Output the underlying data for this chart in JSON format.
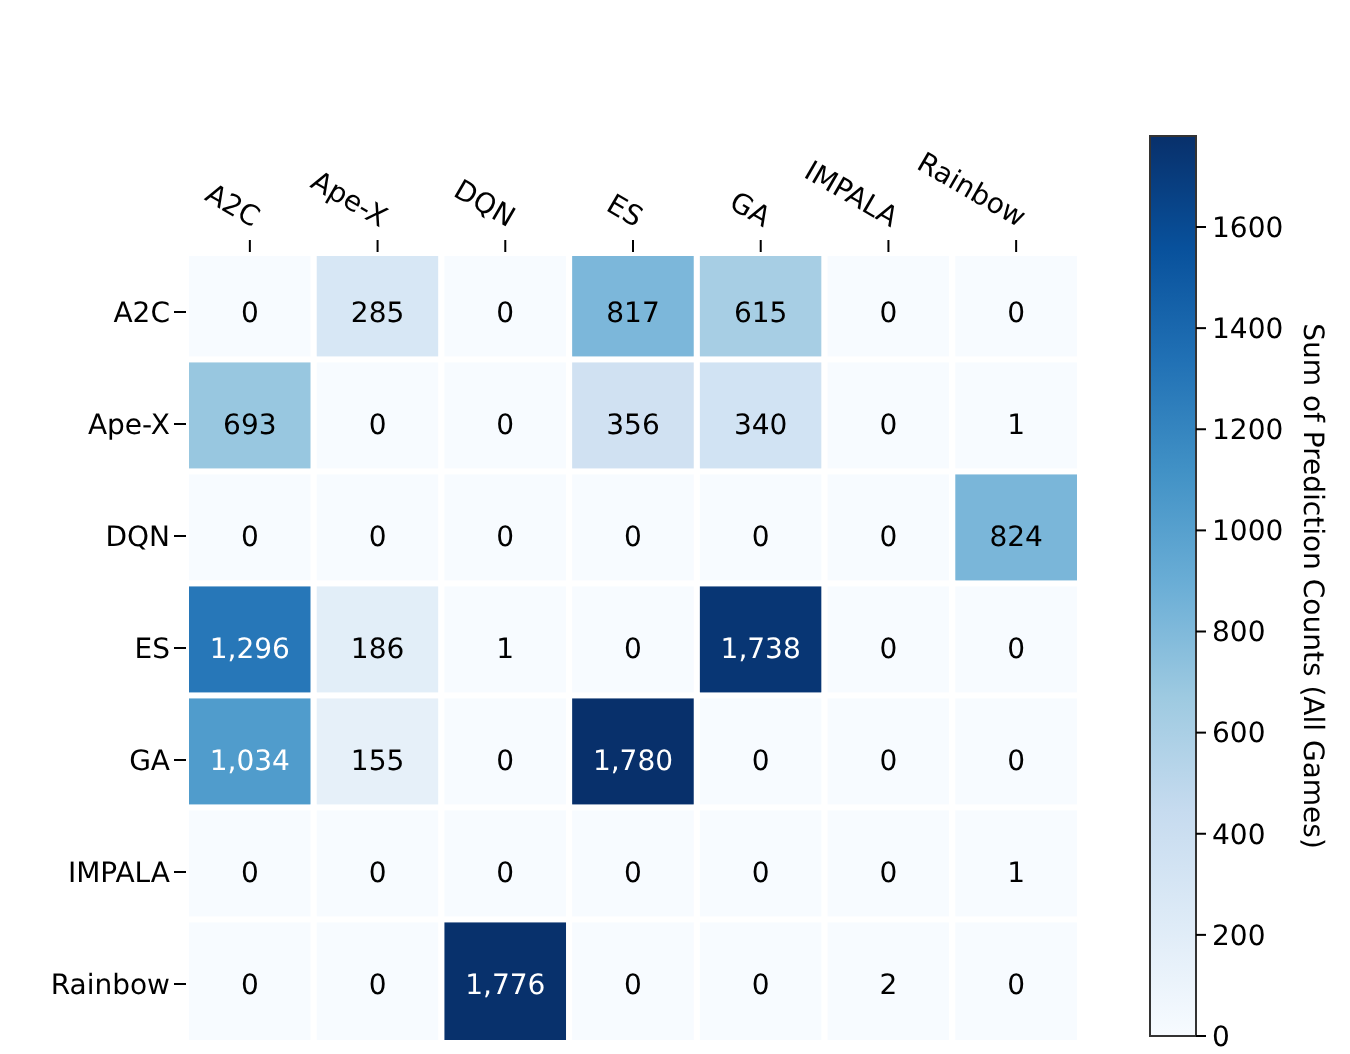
{
  "chart_data": {
    "type": "heatmap",
    "clabel": "Sum of Prediction Counts (All Games)",
    "categories": [
      "A2C",
      "Ape-X",
      "DQN",
      "ES",
      "GA",
      "IMPALA",
      "Rainbow"
    ],
    "y_categories": [
      "A2C",
      "Ape-X",
      "DQN",
      "ES",
      "GA",
      "IMPALA",
      "Rainbow"
    ],
    "cells": [
      [
        0,
        285,
        0,
        817,
        615,
        0,
        0
      ],
      [
        693,
        0,
        0,
        356,
        340,
        0,
        1
      ],
      [
        0,
        0,
        0,
        0,
        0,
        0,
        824
      ],
      [
        1296,
        186,
        1,
        0,
        1738,
        0,
        0
      ],
      [
        1034,
        155,
        0,
        1780,
        0,
        0,
        0
      ],
      [
        0,
        0,
        0,
        0,
        0,
        0,
        1
      ],
      [
        0,
        0,
        1776,
        0,
        0,
        2,
        0
      ]
    ],
    "cell_labels": [
      [
        "0",
        "285",
        "0",
        "817",
        "615",
        "0",
        "0"
      ],
      [
        "693",
        "0",
        "0",
        "356",
        "340",
        "0",
        "1"
      ],
      [
        "0",
        "0",
        "0",
        "0",
        "0",
        "0",
        "824"
      ],
      [
        "1,296",
        "186",
        "1",
        "0",
        "1,738",
        "0",
        "0"
      ],
      [
        "1,034",
        "155",
        "0",
        "1,780",
        "0",
        "0",
        "0"
      ],
      [
        "0",
        "0",
        "0",
        "0",
        "0",
        "0",
        "1"
      ],
      [
        "0",
        "0",
        "1,776",
        "0",
        "0",
        "2",
        "0"
      ]
    ],
    "data_labels": true,
    "clim": [
      0,
      1780
    ],
    "cticks": [
      0,
      200,
      400,
      600,
      800,
      1000,
      1200,
      1400,
      1600
    ]
  }
}
